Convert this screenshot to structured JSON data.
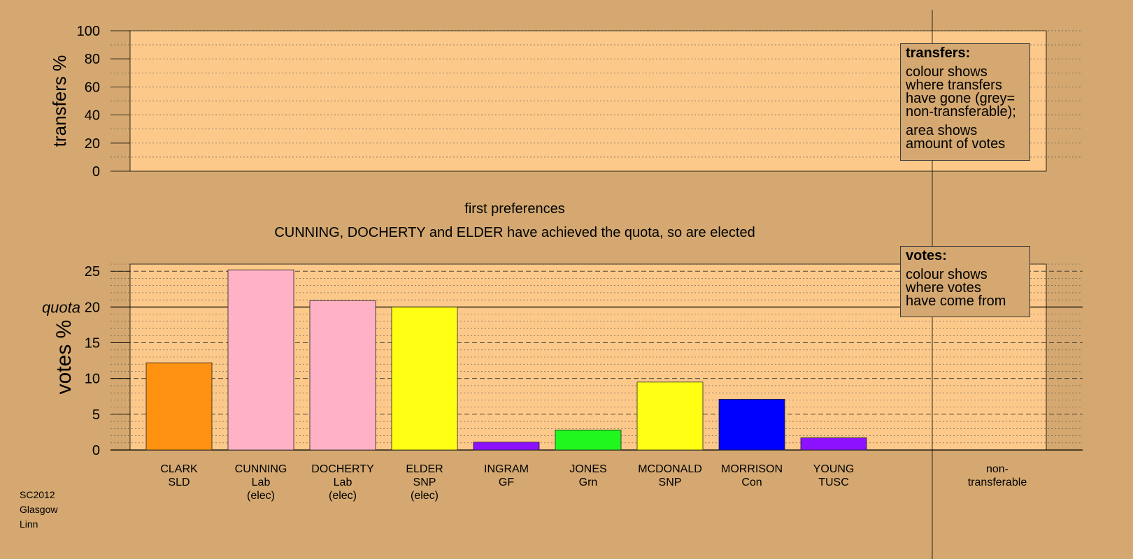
{
  "chart_data": [
    {
      "type": "bar",
      "title": "first preferences",
      "subtitle": "CUNNING, DOCHERTY and ELDER have achieved the quota, so are elected",
      "ylabel": "votes %",
      "ylim": [
        0,
        26
      ],
      "yticks": [
        0,
        5,
        10,
        15,
        20,
        25
      ],
      "quota": 20,
      "quota_label": "quota",
      "grid": true,
      "categories": [
        {
          "name": "CLARK",
          "party": "SLD",
          "note": ""
        },
        {
          "name": "CUNNING",
          "party": "Lab",
          "note": "(elec)"
        },
        {
          "name": "DOCHERTY",
          "party": "Lab",
          "note": "(elec)"
        },
        {
          "name": "ELDER",
          "party": "SNP",
          "note": "(elec)"
        },
        {
          "name": "INGRAM",
          "party": "GF",
          "note": ""
        },
        {
          "name": "JONES",
          "party": "Grn",
          "note": ""
        },
        {
          "name": "MCDONALD",
          "party": "SNP",
          "note": ""
        },
        {
          "name": "MORRISON",
          "party": "Con",
          "note": ""
        },
        {
          "name": "YOUNG",
          "party": "TUSC",
          "note": ""
        }
      ],
      "values": [
        12.2,
        25.2,
        20.9,
        20.0,
        1.1,
        2.8,
        9.5,
        7.1,
        1.7
      ],
      "colors": [
        "#ff9211",
        "#ffb2c6",
        "#ffb2c6",
        "#ffff14",
        "#8c12ff",
        "#1ff71f",
        "#ffff14",
        "#0000ff",
        "#8c12ff"
      ],
      "extra_category": {
        "line1": "non-",
        "line2": "transferable"
      }
    },
    {
      "type": "bar",
      "ylabel": "transfers %",
      "ylim": [
        0,
        100
      ],
      "yticks": [
        0,
        20,
        40,
        60,
        80,
        100
      ],
      "grid": true,
      "values": []
    }
  ],
  "legends": {
    "transfers": {
      "title": "transfers:",
      "lines1": [
        "colour shows",
        "where transfers",
        "have gone (grey=",
        "non-transferable);"
      ],
      "lines2": [
        "area shows",
        "amount of votes"
      ]
    },
    "votes": {
      "title": "votes:",
      "lines1": [
        "colour shows",
        "where votes",
        "have come from"
      ]
    }
  },
  "footer": {
    "line1": "SC2012",
    "line2": "Glasgow",
    "line3": "Linn"
  },
  "colors": {
    "background": "#d4a870",
    "panel": "#fdc98a",
    "axis": "#000000"
  }
}
